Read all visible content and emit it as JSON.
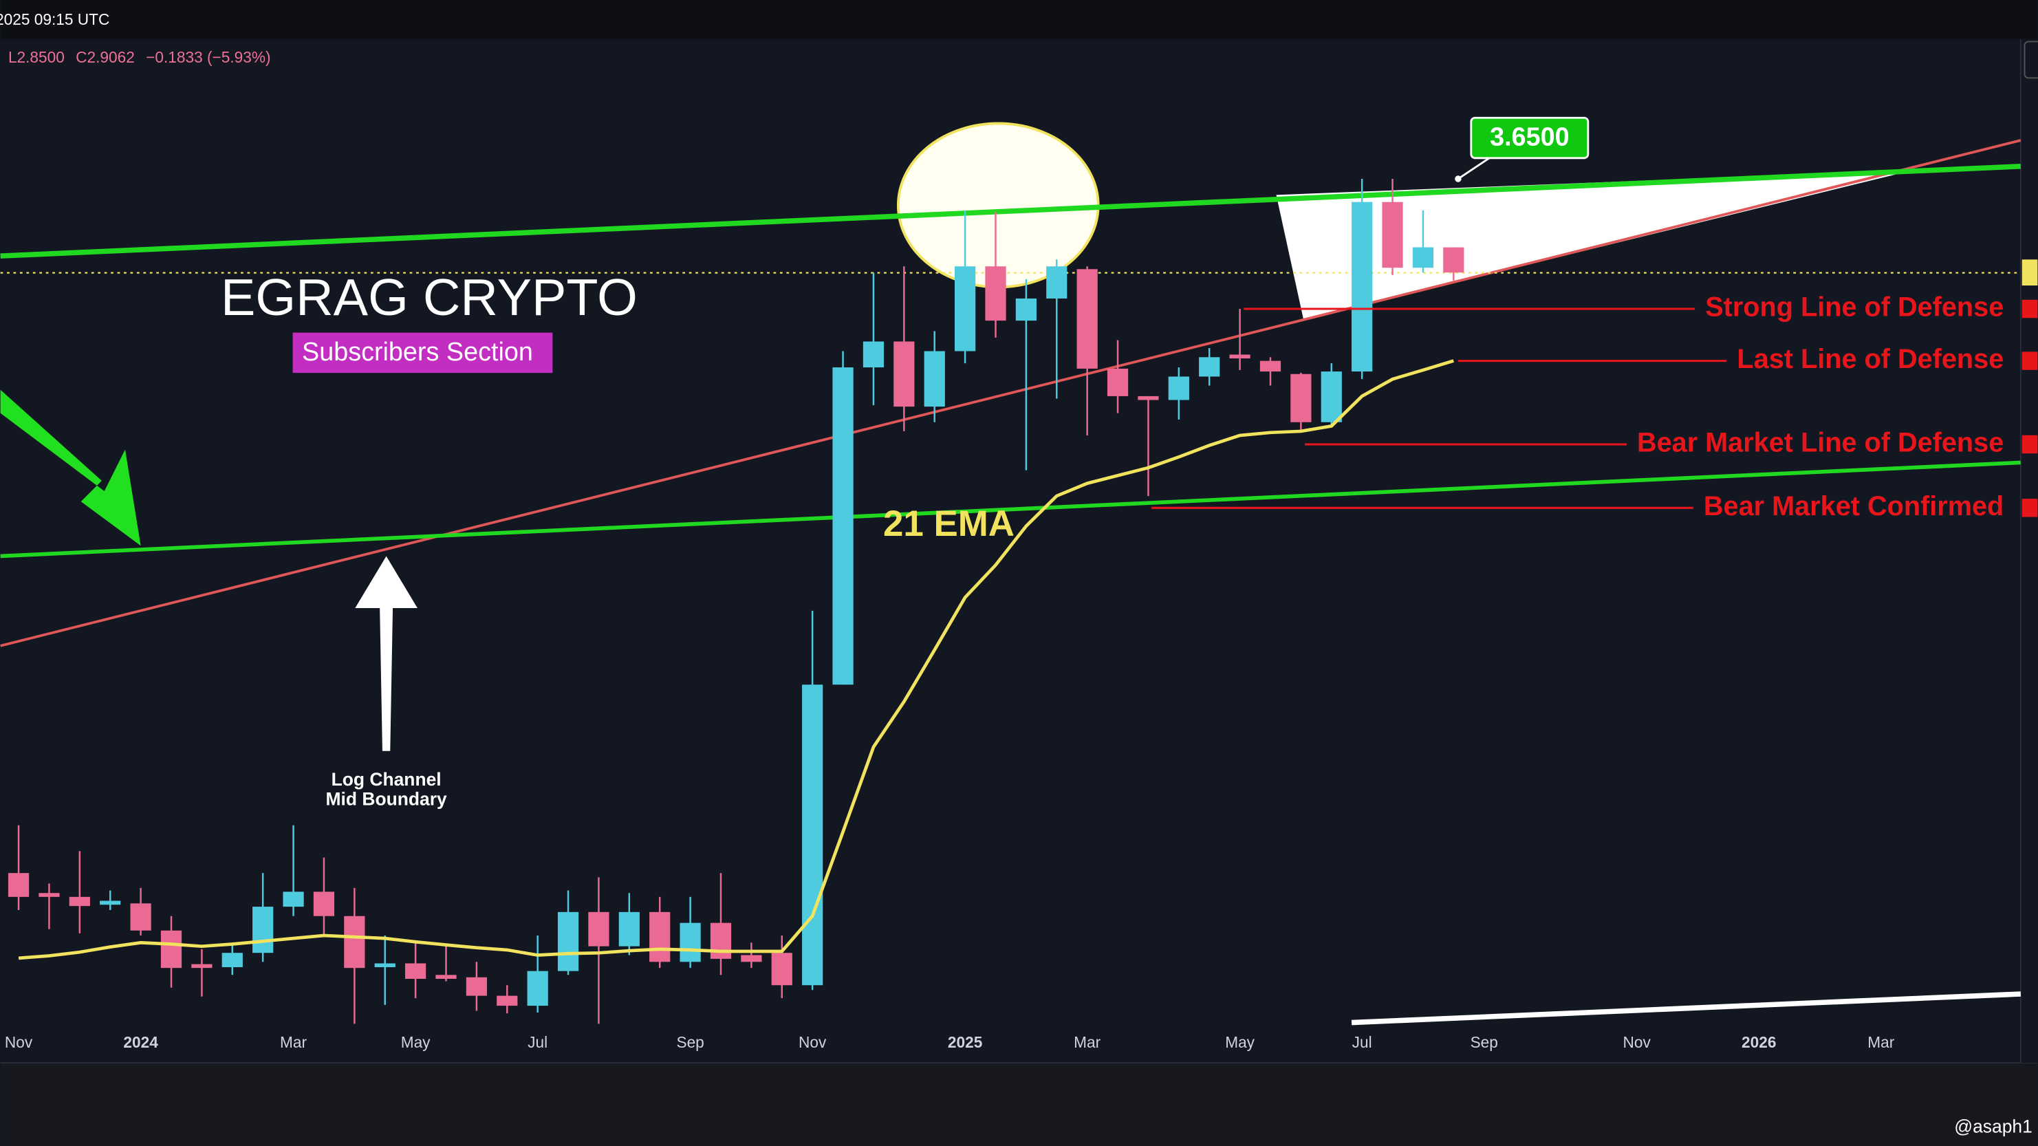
{
  "chart_data": {
    "type": "candlestick",
    "header": {
      "time": "2025 09:15 UTC",
      "low": "L2.8500",
      "close": "C2.9062",
      "change": "−0.1833 (−5.93%)"
    },
    "watermark": "@asaph1",
    "categories": [
      "Nov",
      null,
      null,
      null,
      "2024",
      null,
      null,
      null,
      null,
      "Mar",
      null,
      null,
      null,
      "May",
      null,
      null,
      null,
      "Jul",
      null,
      null,
      null,
      null,
      "Sep",
      null,
      null,
      null,
      "Nov",
      null,
      null,
      null,
      null,
      "2025",
      null,
      null,
      null,
      "Mar",
      null,
      null,
      null,
      null,
      "May",
      null,
      null,
      null,
      "Jul",
      null,
      null,
      null,
      "Sep",
      null,
      null,
      null,
      null,
      "Nov",
      null,
      null,
      null,
      "2026",
      null,
      null,
      null,
      "Mar",
      null,
      null,
      null,
      null
    ],
    "open": [
      0.674,
      0.642,
      0.636,
      0.624,
      0.626,
      0.586,
      0.54,
      0.536,
      0.555,
      0.621,
      0.644,
      0.607,
      0.536,
      0.541,
      0.526,
      0.523,
      0.5,
      0.488,
      0.531,
      0.613,
      0.564,
      0.613,
      0.543,
      0.597,
      0.552,
      0.555,
      0.513,
      1.066,
      2.307,
      2.457,
      2.097,
      2.4,
      2.95,
      2.585,
      2.728,
      2.93,
      2.3,
      2.151,
      2.131,
      2.256,
      2.38,
      2.344,
      2.27,
      2.019,
      2.284,
      3.45,
      2.94,
      3.0895,
      null,
      null,
      null,
      null,
      null,
      null,
      null,
      null,
      null,
      null,
      null,
      null,
      null,
      null,
      null,
      null,
      null,
      null
    ],
    "high": [
      0.757,
      0.657,
      0.711,
      0.646,
      0.65,
      0.607,
      0.56,
      0.569,
      0.674,
      0.757,
      0.7,
      0.65,
      0.579,
      0.569,
      0.564,
      0.543,
      0.513,
      0.579,
      0.646,
      0.667,
      0.642,
      0.636,
      0.636,
      0.674,
      0.569,
      0.579,
      1.276,
      2.4,
      2.906,
      2.95,
      2.52,
      3.38,
      3.37,
      2.86,
      3.0,
      2.95,
      2.465,
      2.151,
      2.307,
      2.418,
      2.66,
      2.365,
      2.277,
      2.33,
      3.65,
      3.65,
      3.38,
      3.09,
      null,
      null,
      null,
      null,
      null,
      null,
      null,
      null,
      null,
      null,
      null,
      null,
      null,
      null,
      null,
      null,
      null,
      null
    ],
    "low": [
      0.616,
      0.588,
      0.582,
      0.616,
      0.579,
      0.51,
      0.499,
      0.526,
      0.543,
      0.607,
      0.579,
      0.467,
      0.489,
      0.497,
      0.518,
      0.482,
      0.479,
      0.48,
      0.526,
      0.467,
      0.552,
      0.535,
      0.535,
      0.526,
      0.535,
      0.497,
      0.507,
      1.066,
      2.104,
      1.975,
      2.019,
      2.33,
      2.48,
      1.796,
      2.138,
      1.955,
      2.064,
      1.687,
      2.032,
      2.207,
      2.292,
      2.207,
      1.969,
      2.0,
      2.242,
      2.888,
      2.906,
      2.85,
      null,
      null,
      null,
      null,
      null,
      null,
      null,
      null,
      null,
      null,
      null,
      null,
      null,
      null,
      null,
      null,
      null,
      null
    ],
    "close": [
      0.636,
      0.636,
      0.622,
      0.63,
      0.586,
      0.535,
      0.535,
      0.555,
      0.621,
      0.644,
      0.607,
      0.535,
      0.541,
      0.521,
      0.521,
      0.5,
      0.488,
      0.531,
      0.613,
      0.564,
      0.613,
      0.543,
      0.597,
      0.547,
      0.543,
      0.513,
      1.066,
      2.307,
      2.457,
      2.097,
      2.4,
      2.95,
      2.585,
      2.728,
      2.95,
      2.3,
      2.151,
      2.131,
      2.256,
      2.365,
      2.358,
      2.284,
      2.019,
      2.284,
      3.45,
      2.94,
      3.09,
      2.9062,
      null,
      null,
      null,
      null,
      null,
      null,
      null,
      null,
      null,
      null,
      null,
      null,
      null,
      null,
      null,
      null,
      null,
      null
    ],
    "up_color": "#4fcbe0",
    "down_color": "#eb6a93",
    "ema": {
      "name": "21 EMA",
      "color": "#f2e35e",
      "values": [
        0.548,
        0.551,
        0.556,
        0.563,
        0.569,
        0.567,
        0.564,
        0.567,
        0.571,
        0.575,
        0.579,
        0.577,
        0.575,
        0.57,
        0.566,
        0.562,
        0.559,
        0.552,
        0.554,
        0.555,
        0.558,
        0.56,
        0.559,
        0.557,
        0.557,
        0.557,
        0.607,
        0.745,
        0.916,
        1.023,
        1.16,
        1.318,
        1.426,
        1.568,
        1.687,
        1.74,
        1.773,
        1.807,
        1.855,
        1.908,
        1.955,
        1.969,
        1.975,
        2.0,
        2.151,
        2.242,
        2.292,
        2.344,
        null,
        null,
        null,
        null,
        null,
        null,
        null,
        null,
        null,
        null,
        null,
        null,
        null,
        null,
        null,
        null,
        null,
        null
      ]
    },
    "levels": [
      {
        "label": "Strong Line of Defense",
        "value": 2.66
      },
      {
        "label": "Last Line of Defense",
        "value": 2.344
      },
      {
        "label": "Bear Market Line of Defense",
        "value": 1.913
      },
      {
        "label": "Bear Market Confirmed",
        "value": 1.639
      }
    ],
    "level_color": "#e8161b",
    "high_callout": {
      "value": 3.65,
      "label": "3.6500"
    },
    "annotations": {
      "brand": "EGRAG CRYPTO",
      "badge": "Subscribers Section",
      "channel_note": [
        "Log Channel",
        "Mid Boundary"
      ]
    },
    "ylim": [
      0.464,
      5.13
    ],
    "log_scale": true
  }
}
